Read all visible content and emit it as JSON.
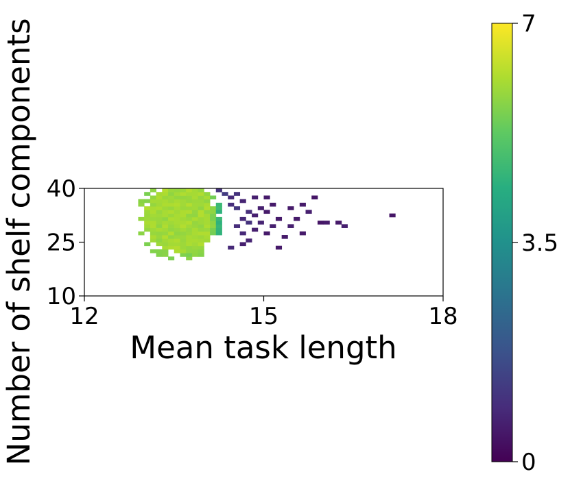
{
  "chart_data": {
    "type": "heatmap",
    "title": "",
    "xlabel": "Mean task length",
    "ylabel": "Number of shelf components",
    "xlim": [
      12,
      18
    ],
    "ylim": [
      10,
      40
    ],
    "xticks": [
      12,
      15,
      18
    ],
    "xtick_labels": [
      "12",
      "15",
      "18"
    ],
    "yticks": [
      10,
      25,
      40
    ],
    "ytick_labels": [
      "10",
      "25",
      "40"
    ],
    "colorbar": {
      "colormap": "viridis",
      "range": [
        0,
        7
      ],
      "ticks": [
        0,
        3.5,
        7
      ],
      "tick_labels": [
        "0",
        "3.5",
        "7"
      ]
    },
    "grid": false,
    "bin_size": {
      "x": 0.1,
      "y": 1
    },
    "dense_region": {
      "description_value": 6.0,
      "x_center": 13.55,
      "y_center": 31,
      "x_radius": 0.65,
      "y_radius": 10
    },
    "sparse_cells": [
      [
        14.2,
        39,
        1.0
      ],
      [
        14.3,
        38,
        1.2
      ],
      [
        14.4,
        37,
        0.8
      ],
      [
        14.5,
        38,
        1.0
      ],
      [
        14.4,
        35,
        0.9
      ],
      [
        14.5,
        34,
        1.1
      ],
      [
        14.6,
        36,
        0.7
      ],
      [
        14.7,
        33,
        0.9
      ],
      [
        14.6,
        31,
        0.8
      ],
      [
        14.7,
        30,
        1.0
      ],
      [
        14.8,
        32,
        0.6
      ],
      [
        14.5,
        29,
        0.9
      ],
      [
        14.6,
        27,
        0.8
      ],
      [
        14.7,
        25,
        0.7
      ],
      [
        14.8,
        28,
        0.6
      ],
      [
        14.9,
        30,
        0.7
      ],
      [
        14.9,
        34,
        0.6
      ],
      [
        15.0,
        33,
        0.5
      ],
      [
        15.0,
        27,
        0.5
      ],
      [
        15.1,
        29,
        0.6
      ],
      [
        15.1,
        35,
        0.5
      ],
      [
        15.2,
        31,
        0.5
      ],
      [
        15.3,
        26,
        0.5
      ],
      [
        15.2,
        23,
        0.5
      ],
      [
        15.4,
        29,
        0.6
      ],
      [
        15.4,
        34,
        0.5
      ],
      [
        15.5,
        31,
        0.5
      ],
      [
        15.6,
        27,
        0.5
      ],
      [
        15.7,
        33,
        0.6
      ],
      [
        15.6,
        35,
        0.5
      ],
      [
        15.8,
        37,
        0.4
      ],
      [
        15.9,
        30,
        0.4
      ],
      [
        14.8,
        37,
        0.6
      ],
      [
        15.0,
        37,
        0.5
      ],
      [
        14.4,
        23,
        0.8
      ],
      [
        14.6,
        24,
        0.6
      ],
      [
        16.0,
        30,
        0.5
      ],
      [
        16.2,
        30,
        0.5
      ],
      [
        16.3,
        29,
        0.6
      ],
      [
        17.1,
        32,
        0.4
      ]
    ]
  }
}
